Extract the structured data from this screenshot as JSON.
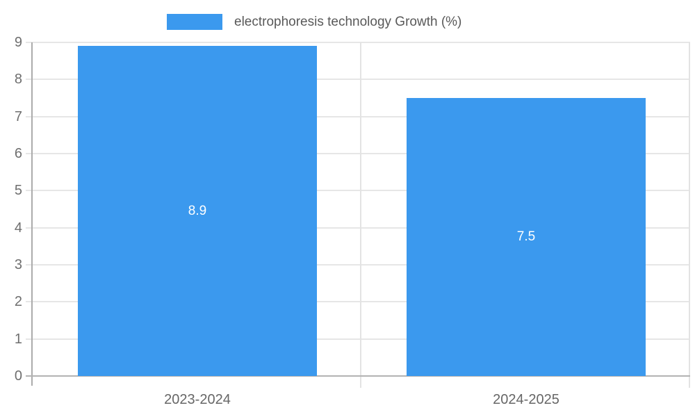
{
  "chart_data": {
    "type": "bar",
    "title": "",
    "legend": [
      {
        "label": "electrophoresis technology Growth (%)",
        "color": "#3B99EE"
      }
    ],
    "legend_position": "top",
    "categories": [
      "2023-2024",
      "2024-2025"
    ],
    "series": [
      {
        "name": "electrophoresis technology Growth (%)",
        "values": [
          8.9,
          7.5
        ]
      }
    ],
    "value_labels": [
      "8.9",
      "7.5"
    ],
    "xlabel": "",
    "ylabel": "",
    "ylim": [
      0,
      9
    ],
    "yticks": [
      0,
      1,
      2,
      3,
      4,
      5,
      6,
      7,
      8,
      9
    ],
    "grid": true,
    "colors": {
      "bar": "#3B99EE",
      "value_label": "#FFFFFF",
      "gridline": "#E6E6E6",
      "category_boundary": "#E3E3E3",
      "y_axis_line": "#ABABAB",
      "x_axis_line": "#B3B3B3",
      "y_tick_label": "#6E6E6E",
      "x_tick_label": "#666666",
      "legend_text": "#595959",
      "background": "#FFFFFF"
    }
  }
}
